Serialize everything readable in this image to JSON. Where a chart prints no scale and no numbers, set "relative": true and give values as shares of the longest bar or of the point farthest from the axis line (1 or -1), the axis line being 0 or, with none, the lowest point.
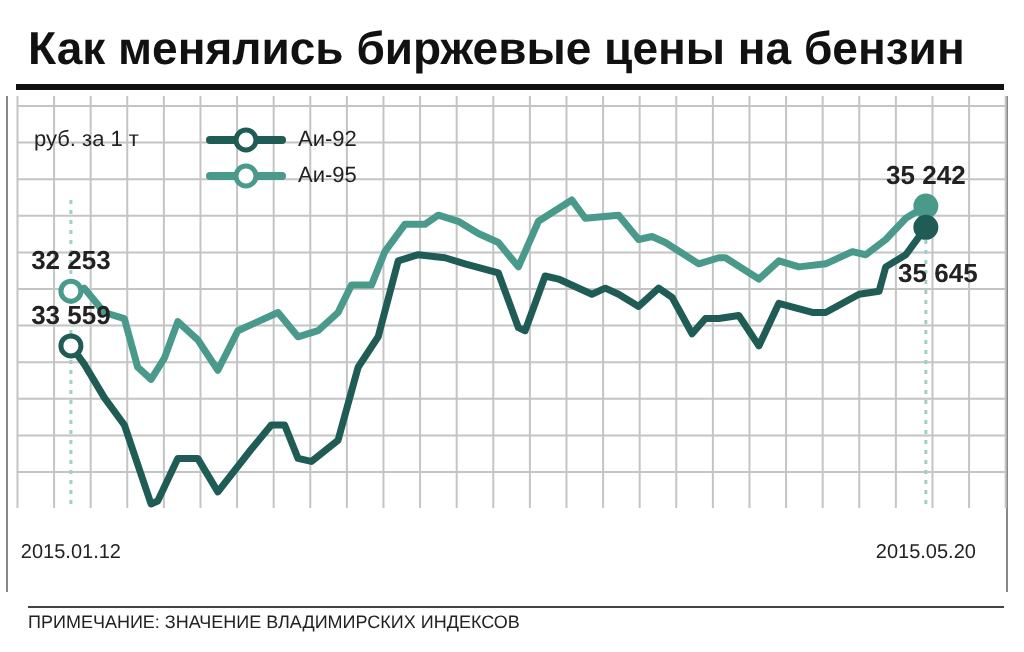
{
  "chart_data": {
    "type": "line",
    "title": "Как менялись биржевые цены на бензин",
    "ylabel": "руб. за 1 т",
    "relative": true,
    "grid": true,
    "legend": "top left",
    "line_style": "solid",
    "xlim": [
      "2015-01-04",
      "2015-06-01"
    ],
    "xticks": [
      {
        "value": "2015-01-12",
        "label": "2015.01.12"
      },
      {
        "value": "2015-05-20",
        "label": "2015.05.20"
      }
    ],
    "series": [
      {
        "name": "Аи-92",
        "color": "#1f5c55",
        "x": [
          "2015-01-12",
          "2015-01-14",
          "2015-01-17",
          "2015-01-20",
          "2015-01-24",
          "2015-01-25",
          "2015-01-28",
          "2015-01-31",
          "2015-02-03",
          "2015-02-08",
          "2015-02-11",
          "2015-02-13",
          "2015-02-15",
          "2015-02-17",
          "2015-02-21",
          "2015-02-24",
          "2015-02-27",
          "2015-03-02",
          "2015-03-05",
          "2015-03-09",
          "2015-03-12",
          "2015-03-17",
          "2015-03-20",
          "2015-03-21",
          "2015-03-24",
          "2015-03-26",
          "2015-03-31",
          "2015-04-02",
          "2015-04-04",
          "2015-04-07",
          "2015-04-10",
          "2015-04-12",
          "2015-04-15",
          "2015-04-17",
          "2015-04-19",
          "2015-04-22",
          "2015-04-25",
          "2015-04-28",
          "2015-05-03",
          "2015-05-05",
          "2015-05-10",
          "2015-05-13",
          "2015-05-14",
          "2015-05-17",
          "2015-05-20"
        ],
        "values": [
          0.52,
          0.46,
          0.35,
          0.26,
          0.0,
          0.01,
          0.15,
          0.15,
          0.04,
          0.18,
          0.26,
          0.26,
          0.15,
          0.14,
          0.21,
          0.45,
          0.55,
          0.8,
          0.82,
          0.81,
          0.79,
          0.76,
          0.58,
          0.57,
          0.75,
          0.74,
          0.69,
          0.71,
          0.69,
          0.65,
          0.71,
          0.68,
          0.56,
          0.61,
          0.61,
          0.62,
          0.52,
          0.66,
          0.63,
          0.63,
          0.69,
          0.7,
          0.78,
          0.82,
          0.91
        ]
      },
      {
        "name": "Аи-95",
        "color": "#4a9a8c",
        "x": [
          "2015-01-12",
          "2015-01-14",
          "2015-01-17",
          "2015-01-20",
          "2015-01-22",
          "2015-01-24",
          "2015-01-26",
          "2015-01-28",
          "2015-01-31",
          "2015-02-03",
          "2015-02-06",
          "2015-02-09",
          "2015-02-12",
          "2015-02-15",
          "2015-02-18",
          "2015-02-21",
          "2015-02-23",
          "2015-02-26",
          "2015-02-28",
          "2015-03-03",
          "2015-03-06",
          "2015-03-08",
          "2015-03-11",
          "2015-03-14",
          "2015-03-17",
          "2015-03-20",
          "2015-03-23",
          "2015-03-28",
          "2015-03-30",
          "2015-04-04",
          "2015-04-07",
          "2015-04-09",
          "2015-04-11",
          "2015-04-16",
          "2015-04-19",
          "2015-04-20",
          "2015-04-25",
          "2015-04-28",
          "2015-05-01",
          "2015-05-05",
          "2015-05-09",
          "2015-05-11",
          "2015-05-14",
          "2015-05-17",
          "2015-05-20"
        ],
        "values": [
          0.7,
          0.71,
          0.63,
          0.61,
          0.45,
          0.41,
          0.48,
          0.6,
          0.54,
          0.44,
          0.57,
          0.6,
          0.63,
          0.55,
          0.57,
          0.63,
          0.72,
          0.72,
          0.83,
          0.92,
          0.92,
          0.95,
          0.93,
          0.89,
          0.86,
          0.78,
          0.93,
          1.0,
          0.94,
          0.95,
          0.87,
          0.88,
          0.86,
          0.79,
          0.81,
          0.81,
          0.74,
          0.8,
          0.78,
          0.79,
          0.83,
          0.82,
          0.87,
          0.94,
          0.98
        ]
      }
    ],
    "ref_lines": [
      {
        "axis": "x",
        "value": "2015-01-12",
        "color": "#9fcfc6",
        "line_style": "dotted"
      },
      {
        "axis": "x",
        "value": "2015-05-20",
        "color": "#9fcfc6",
        "line_style": "dotted"
      }
    ],
    "annotations": [
      {
        "text": "32 253",
        "x": "2015-01-12",
        "y": 0.7
      },
      {
        "text": "33 559",
        "x": "2015-01-12",
        "y": 0.52
      },
      {
        "text": "35 242",
        "x": "2015-05-20",
        "y": 0.98
      },
      {
        "text": "35 645",
        "x": "2015-05-20",
        "y": 0.91
      },
      "ПРИМЕЧАНИЕ: ЗНАЧЕНИЕ ВЛАДИМИРСКИХ ИНДЕКСОВ"
    ]
  }
}
